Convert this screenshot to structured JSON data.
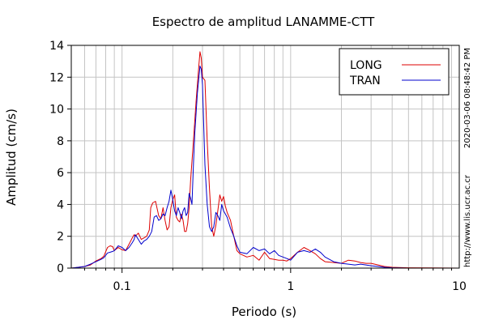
{
  "chart_data": {
    "type": "line",
    "title": "Espectro de amplitud LANAMME-CTT",
    "xlabel": "Periodo (s)",
    "ylabel": "Amplitud (cm/s)",
    "xscale": "log",
    "xlim": [
      0.05,
      10
    ],
    "ylim": [
      0,
      14
    ],
    "grid": true,
    "legend_position": "top-right",
    "x_ticks": [
      {
        "value": 0.1,
        "label": "0.1"
      },
      {
        "value": 1,
        "label": "1"
      },
      {
        "value": 10,
        "label": "10"
      }
    ],
    "y_ticks": [
      {
        "value": 0,
        "label": "0"
      },
      {
        "value": 2,
        "label": "2"
      },
      {
        "value": 4,
        "label": "4"
      },
      {
        "value": 6,
        "label": "6"
      },
      {
        "value": 8,
        "label": "8"
      },
      {
        "value": 10,
        "label": "10"
      },
      {
        "value": 12,
        "label": "12"
      },
      {
        "value": 14,
        "label": "14"
      }
    ],
    "series": [
      {
        "name": "LONG",
        "color": "#dd0000",
        "points": [
          [
            0.05,
            0.0
          ],
          [
            0.055,
            0.05
          ],
          [
            0.06,
            0.1
          ],
          [
            0.065,
            0.2
          ],
          [
            0.07,
            0.45
          ],
          [
            0.075,
            0.6
          ],
          [
            0.078,
            0.75
          ],
          [
            0.082,
            1.3
          ],
          [
            0.085,
            1.4
          ],
          [
            0.088,
            1.35
          ],
          [
            0.09,
            1.1
          ],
          [
            0.095,
            1.3
          ],
          [
            0.1,
            1.15
          ],
          [
            0.105,
            1.1
          ],
          [
            0.11,
            1.5
          ],
          [
            0.115,
            1.9
          ],
          [
            0.118,
            2.1
          ],
          [
            0.12,
            2.0
          ],
          [
            0.125,
            2.2
          ],
          [
            0.13,
            1.8
          ],
          [
            0.135,
            1.9
          ],
          [
            0.14,
            2.0
          ],
          [
            0.145,
            2.4
          ],
          [
            0.148,
            3.8
          ],
          [
            0.152,
            4.1
          ],
          [
            0.158,
            4.2
          ],
          [
            0.165,
            3.3
          ],
          [
            0.17,
            3.1
          ],
          [
            0.175,
            3.8
          ],
          [
            0.18,
            3.0
          ],
          [
            0.185,
            2.4
          ],
          [
            0.19,
            2.6
          ],
          [
            0.195,
            3.8
          ],
          [
            0.2,
            4.3
          ],
          [
            0.205,
            4.6
          ],
          [
            0.21,
            3.2
          ],
          [
            0.215,
            3.0
          ],
          [
            0.22,
            2.9
          ],
          [
            0.225,
            3.4
          ],
          [
            0.23,
            3.0
          ],
          [
            0.235,
            2.3
          ],
          [
            0.24,
            2.3
          ],
          [
            0.245,
            2.8
          ],
          [
            0.25,
            3.8
          ],
          [
            0.255,
            5.5
          ],
          [
            0.265,
            8.0
          ],
          [
            0.275,
            10.5
          ],
          [
            0.285,
            12.6
          ],
          [
            0.29,
            13.6
          ],
          [
            0.295,
            13.2
          ],
          [
            0.3,
            12.0
          ],
          [
            0.31,
            11.8
          ],
          [
            0.32,
            8.0
          ],
          [
            0.33,
            5.0
          ],
          [
            0.34,
            2.6
          ],
          [
            0.35,
            2.0
          ],
          [
            0.36,
            2.7
          ],
          [
            0.37,
            3.6
          ],
          [
            0.38,
            4.6
          ],
          [
            0.39,
            4.2
          ],
          [
            0.4,
            4.5
          ],
          [
            0.41,
            3.9
          ],
          [
            0.42,
            3.5
          ],
          [
            0.44,
            3.0
          ],
          [
            0.46,
            2.0
          ],
          [
            0.48,
            1.1
          ],
          [
            0.5,
            0.9
          ],
          [
            0.55,
            0.7
          ],
          [
            0.6,
            0.8
          ],
          [
            0.65,
            0.5
          ],
          [
            0.7,
            1.0
          ],
          [
            0.75,
            0.6
          ],
          [
            0.8,
            0.55
          ],
          [
            0.85,
            0.5
          ],
          [
            0.9,
            0.5
          ],
          [
            0.95,
            0.45
          ],
          [
            1.0,
            0.6
          ],
          [
            1.1,
            1.0
          ],
          [
            1.2,
            1.3
          ],
          [
            1.3,
            1.1
          ],
          [
            1.4,
            0.9
          ],
          [
            1.5,
            0.6
          ],
          [
            1.6,
            0.4
          ],
          [
            1.8,
            0.35
          ],
          [
            2.0,
            0.3
          ],
          [
            2.2,
            0.5
          ],
          [
            2.4,
            0.45
          ],
          [
            2.6,
            0.35
          ],
          [
            2.8,
            0.3
          ],
          [
            3.0,
            0.3
          ],
          [
            3.3,
            0.2
          ],
          [
            3.6,
            0.1
          ],
          [
            4.0,
            0.05
          ],
          [
            5.0,
            0.02
          ],
          [
            7.0,
            0.01
          ],
          [
            10.0,
            0.0
          ]
        ]
      },
      {
        "name": "TRAN",
        "color": "#0000cc",
        "points": [
          [
            0.05,
            0.0
          ],
          [
            0.055,
            0.05
          ],
          [
            0.06,
            0.1
          ],
          [
            0.065,
            0.25
          ],
          [
            0.07,
            0.4
          ],
          [
            0.075,
            0.55
          ],
          [
            0.078,
            0.65
          ],
          [
            0.082,
            0.95
          ],
          [
            0.085,
            1.0
          ],
          [
            0.088,
            1.05
          ],
          [
            0.09,
            1.1
          ],
          [
            0.095,
            1.4
          ],
          [
            0.1,
            1.3
          ],
          [
            0.105,
            1.1
          ],
          [
            0.11,
            1.3
          ],
          [
            0.115,
            1.6
          ],
          [
            0.118,
            1.8
          ],
          [
            0.12,
            2.1
          ],
          [
            0.125,
            1.8
          ],
          [
            0.13,
            1.5
          ],
          [
            0.135,
            1.7
          ],
          [
            0.14,
            1.8
          ],
          [
            0.145,
            2.0
          ],
          [
            0.15,
            2.3
          ],
          [
            0.155,
            3.2
          ],
          [
            0.16,
            3.3
          ],
          [
            0.165,
            3.0
          ],
          [
            0.17,
            3.1
          ],
          [
            0.175,
            3.4
          ],
          [
            0.18,
            3.3
          ],
          [
            0.185,
            3.8
          ],
          [
            0.19,
            4.2
          ],
          [
            0.195,
            4.9
          ],
          [
            0.2,
            4.3
          ],
          [
            0.205,
            3.6
          ],
          [
            0.21,
            3.3
          ],
          [
            0.215,
            3.8
          ],
          [
            0.22,
            3.5
          ],
          [
            0.225,
            3.1
          ],
          [
            0.23,
            3.6
          ],
          [
            0.235,
            3.8
          ],
          [
            0.24,
            3.3
          ],
          [
            0.245,
            3.5
          ],
          [
            0.25,
            4.7
          ],
          [
            0.255,
            4.4
          ],
          [
            0.26,
            4.0
          ],
          [
            0.265,
            6.5
          ],
          [
            0.27,
            8.5
          ],
          [
            0.28,
            11.0
          ],
          [
            0.29,
            12.7
          ],
          [
            0.295,
            12.5
          ],
          [
            0.3,
            11.5
          ],
          [
            0.305,
            9.0
          ],
          [
            0.31,
            6.5
          ],
          [
            0.32,
            4.0
          ],
          [
            0.33,
            2.6
          ],
          [
            0.34,
            2.3
          ],
          [
            0.35,
            2.6
          ],
          [
            0.36,
            3.5
          ],
          [
            0.37,
            3.3
          ],
          [
            0.38,
            3.0
          ],
          [
            0.39,
            4.0
          ],
          [
            0.4,
            3.6
          ],
          [
            0.42,
            3.2
          ],
          [
            0.44,
            2.5
          ],
          [
            0.46,
            2.0
          ],
          [
            0.48,
            1.4
          ],
          [
            0.5,
            1.0
          ],
          [
            0.55,
            0.9
          ],
          [
            0.6,
            1.3
          ],
          [
            0.65,
            1.1
          ],
          [
            0.7,
            1.2
          ],
          [
            0.75,
            0.9
          ],
          [
            0.8,
            1.1
          ],
          [
            0.85,
            0.8
          ],
          [
            0.9,
            0.7
          ],
          [
            0.95,
            0.6
          ],
          [
            1.0,
            0.5
          ],
          [
            1.1,
            1.0
          ],
          [
            1.2,
            1.1
          ],
          [
            1.3,
            1.0
          ],
          [
            1.4,
            1.2
          ],
          [
            1.5,
            1.0
          ],
          [
            1.6,
            0.7
          ],
          [
            1.8,
            0.4
          ],
          [
            2.0,
            0.3
          ],
          [
            2.2,
            0.25
          ],
          [
            2.4,
            0.2
          ],
          [
            2.6,
            0.25
          ],
          [
            2.8,
            0.2
          ],
          [
            3.0,
            0.15
          ],
          [
            3.3,
            0.1
          ],
          [
            3.6,
            0.05
          ],
          [
            4.0,
            0.02
          ],
          [
            5.0,
            0.0
          ],
          [
            10.0,
            0.0
          ]
        ]
      }
    ]
  },
  "side_texts": {
    "timestamp": "2020-03-06 08:48:42 PM",
    "url": "http://www.lis.ucr.ac.cr"
  }
}
